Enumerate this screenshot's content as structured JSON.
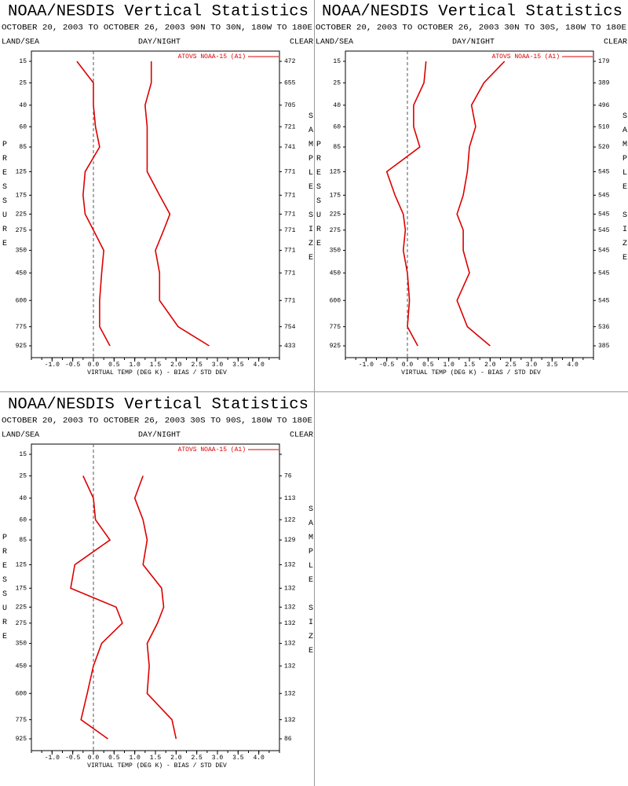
{
  "chart_data": [
    {
      "type": "line",
      "title": "NOAA/NESDIS Vertical Statistics",
      "subtitle": "OCTOBER 20, 2003 TO OCTOBER 26, 2003 90N TO 30N, 180W TO 180E",
      "left_label": "LAND/SEA",
      "center_label": "DAY/NIGHT",
      "right_label": "CLEAR",
      "ylabel": "PRESSURE",
      "y2label": "SAMPLE SIZE",
      "xlabel": "VIRTUAL TEMP (DEG K) - BIAS / STD DEV",
      "legend": "ATOVS NOAA-15 (A1)",
      "color": "#dd0000",
      "y": [
        15,
        25,
        40,
        60,
        85,
        125,
        175,
        225,
        275,
        350,
        450,
        600,
        775,
        925
      ],
      "ylim": [
        15,
        925
      ],
      "series": [
        {
          "values": [
            -0.4,
            0.0,
            0.0,
            0.05,
            0.15,
            -0.2,
            -0.25,
            -0.2,
            0.0,
            0.25,
            0.2,
            0.15,
            0.15,
            0.4
          ]
        },
        {
          "values": [
            1.4,
            1.4,
            1.25,
            1.3,
            1.3,
            1.3,
            1.6,
            1.85,
            1.7,
            1.5,
            1.6,
            1.6,
            2.05,
            2.8
          ]
        }
      ],
      "sample_size": [
        472,
        655,
        705,
        721,
        741,
        771,
        771,
        771,
        771,
        771,
        771,
        771,
        754,
        433
      ],
      "xlim": [
        -1.5,
        4.5
      ],
      "xticks": [
        {
          "value": -1.0,
          "label": "-1.0"
        },
        -0.5,
        {
          "value": 0.0,
          "label": "0.0"
        },
        0.5,
        {
          "value": 1.0,
          "label": "1.0"
        },
        1.5,
        {
          "value": 2.0,
          "label": "2.0"
        },
        2.5,
        {
          "value": 3.0,
          "label": "3.0"
        },
        3.5,
        {
          "value": 4.0,
          "label": "4.0"
        }
      ]
    },
    {
      "type": "line",
      "title": "NOAA/NESDIS Vertical Statistics",
      "subtitle": "OCTOBER 20, 2003 TO OCTOBER 26, 2003 30N TO 30S, 180W TO 180E",
      "left_label": "LAND/SEA",
      "center_label": "DAY/NIGHT",
      "right_label": "CLEAR",
      "ylabel": "PRESSURE",
      "y2label": "SAMPLE SIZE",
      "xlabel": "VIRTUAL TEMP (DEG K) - BIAS / STD DEV",
      "legend": "ATOVS NOAA-15 (A1)",
      "color": "#dd0000",
      "y": [
        15,
        25,
        40,
        60,
        85,
        125,
        175,
        225,
        275,
        350,
        450,
        600,
        775,
        925
      ],
      "ylim": [
        15,
        925
      ],
      "series": [
        {
          "values": [
            0.45,
            0.4,
            0.15,
            0.15,
            0.3,
            -0.5,
            -0.3,
            -0.1,
            -0.05,
            -0.1,
            0.0,
            0.05,
            0.0,
            0.25
          ]
        },
        {
          "values": [
            2.35,
            1.85,
            1.55,
            1.65,
            1.5,
            1.45,
            1.35,
            1.2,
            1.35,
            1.35,
            1.5,
            1.2,
            1.45,
            2.0
          ]
        }
      ],
      "sample_size": [
        179,
        389,
        496,
        510,
        520,
        545,
        545,
        545,
        545,
        545,
        545,
        545,
        536,
        385
      ],
      "xlim": [
        -1.5,
        4.5
      ],
      "xticks": [
        {
          "value": -1.0,
          "label": "-1.0"
        },
        -0.5,
        {
          "value": 0.0,
          "label": "0.0"
        },
        0.5,
        {
          "value": 1.0,
          "label": "1.0"
        },
        1.5,
        {
          "value": 2.0,
          "label": "2.0"
        },
        2.5,
        {
          "value": 3.0,
          "label": "3.0"
        },
        3.5,
        {
          "value": 4.0,
          "label": "4.0"
        }
      ]
    },
    {
      "type": "line",
      "title": "NOAA/NESDIS Vertical Statistics",
      "subtitle": "OCTOBER 20, 2003 TO OCTOBER 26, 2003 30S TO 90S, 180W TO 180E",
      "left_label": "LAND/SEA",
      "center_label": "DAY/NIGHT",
      "right_label": "CLEAR",
      "ylabel": "PRESSURE",
      "y2label": "SAMPLE SIZE",
      "xlabel": "VIRTUAL TEMP (DEG K) - BIAS / STD DEV",
      "legend": "ATOVS NOAA-15 (A1)",
      "color": "#dd0000",
      "y": [
        15,
        25,
        40,
        60,
        85,
        125,
        175,
        225,
        275,
        350,
        450,
        600,
        775,
        925
      ],
      "ylim": [
        15,
        925
      ],
      "series": [
        {
          "values": [
            null,
            -0.25,
            0.0,
            0.05,
            0.4,
            -0.45,
            -0.55,
            0.55,
            0.7,
            0.2,
            0.0,
            -0.15,
            -0.3,
            0.35
          ]
        },
        {
          "values": [
            null,
            1.2,
            1.0,
            1.2,
            1.3,
            1.2,
            1.65,
            1.7,
            1.55,
            1.3,
            1.35,
            1.3,
            1.9,
            2.0
          ]
        }
      ],
      "sample_size": [
        null,
        76,
        113,
        122,
        129,
        132,
        132,
        132,
        132,
        132,
        132,
        132,
        132,
        86
      ],
      "xlim": [
        -1.5,
        4.5
      ],
      "xticks": [
        {
          "value": -1.0,
          "label": "-1.0"
        },
        -0.5,
        {
          "value": 0.0,
          "label": "0.0"
        },
        0.5,
        {
          "value": 1.0,
          "label": "1.0"
        },
        1.5,
        {
          "value": 2.0,
          "label": "2.0"
        },
        2.5,
        {
          "value": 3.0,
          "label": "3.0"
        },
        3.5,
        {
          "value": 4.0,
          "label": "4.0"
        }
      ]
    }
  ]
}
